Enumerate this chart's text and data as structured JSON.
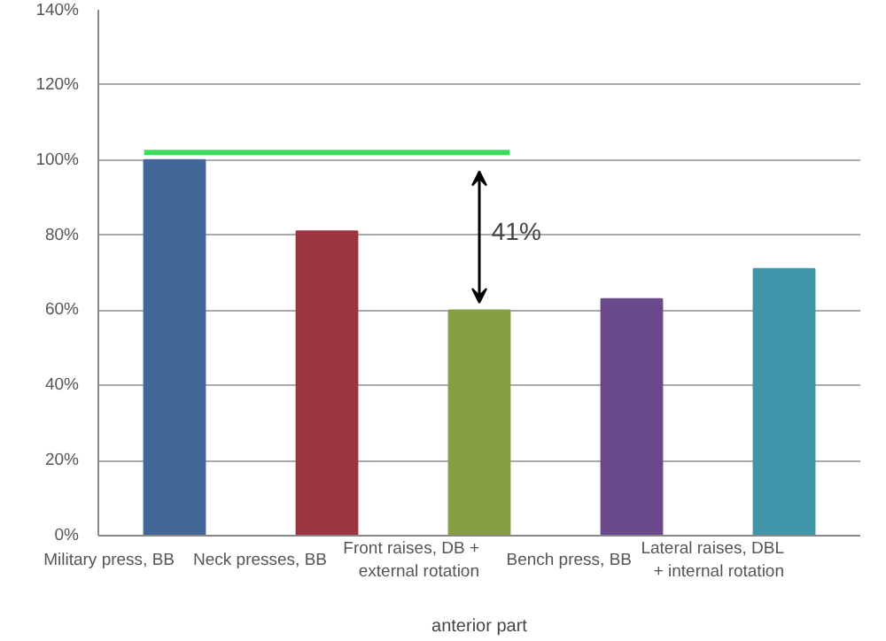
{
  "chart_data": {
    "type": "bar",
    "xlabel": "anterior part",
    "categories": [
      "Military press, BB",
      "Neck presses, BB",
      "Front raises, DB + external rotation",
      "Bench press, BB",
      "Lateral raises, DBL + internal rotation"
    ],
    "colors": [
      "#44679a",
      "#9c3540",
      "#85a043",
      "#6a4a8c",
      "#4096a8"
    ],
    "values": [
      100,
      81,
      60,
      63,
      71
    ],
    "ylim": [
      0,
      140
    ],
    "yticks": [
      {
        "value": 0,
        "label": "0%"
      },
      {
        "value": 20,
        "label": "20%"
      },
      {
        "value": 40,
        "label": "40%"
      },
      {
        "value": 60,
        "label": "60%"
      },
      {
        "value": 80,
        "label": "80%"
      },
      {
        "value": 100,
        "label": "100%"
      },
      {
        "value": 120,
        "label": "120%"
      },
      {
        "value": 140,
        "label": "140%"
      }
    ],
    "grid": "y",
    "ref_lines": [
      {
        "axis": "y",
        "value": 102,
        "color": "#3ddc5a"
      }
    ],
    "annotations": [
      "41%"
    ]
  }
}
